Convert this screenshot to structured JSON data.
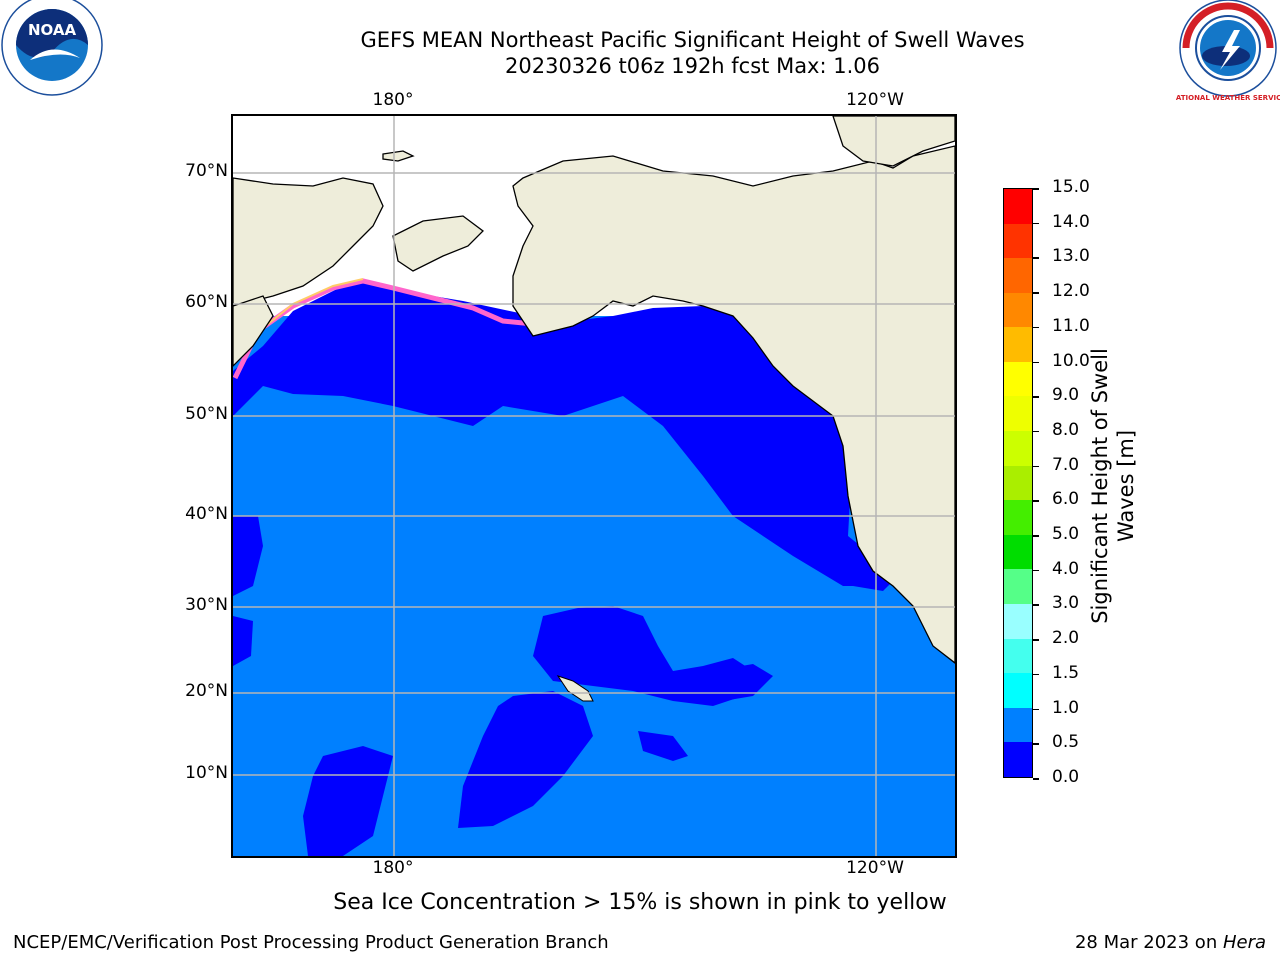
{
  "title": {
    "line1": "GEFS MEAN Northeast Pacific Significant Height of Swell Waves",
    "line2": "20230326 t06z 192h fcst   Max: 1.06"
  },
  "map": {
    "lon_labels_top": [
      "180°",
      "120°W"
    ],
    "lon_labels_bottom": [
      "180°",
      "120°W"
    ],
    "lat_labels": [
      "70°N",
      "60°N",
      "50°N",
      "40°N",
      "30°N",
      "20°N",
      "10°N"
    ],
    "colors": {
      "ocean_low": "#0000ff",
      "ocean_mid": "#0080ff",
      "land": "#eeedda",
      "grid": "#b5b5b5",
      "ice_pink": "#ff66cc",
      "ice_yellow": "#ffcc33"
    }
  },
  "colorbar": {
    "ticks": [
      "0.0",
      "0.5",
      "1.0",
      "1.5",
      "2.0",
      "3.0",
      "4.0",
      "5.0",
      "6.0",
      "7.0",
      "8.0",
      "9.0",
      "10.0",
      "11.0",
      "12.0",
      "13.0",
      "14.0",
      "15.0"
    ],
    "colors": [
      "#0000ff",
      "#0080ff",
      "#00ffff",
      "#44ffee",
      "#99ffff",
      "#55ff88",
      "#00dd00",
      "#44ee00",
      "#aaee00",
      "#ccff00",
      "#eeff00",
      "#ffff00",
      "#ffbb00",
      "#ff8800",
      "#ff6600",
      "#ff3300",
      "#ff0000"
    ],
    "label_line1": "Significant Height of Swell",
    "label_line2": "Waves [m]"
  },
  "note": "Sea Ice Concentration > 15% is shown in pink to yellow",
  "footer": {
    "left": "NCEP/EMC/Verification Post Processing Product Generation Branch",
    "right_date": "28 Mar 2023 on ",
    "right_machine": "Hera"
  },
  "logos": {
    "noaa_text": "NOAA",
    "nws_text": "NATIONAL WEATHER SERVICE"
  }
}
